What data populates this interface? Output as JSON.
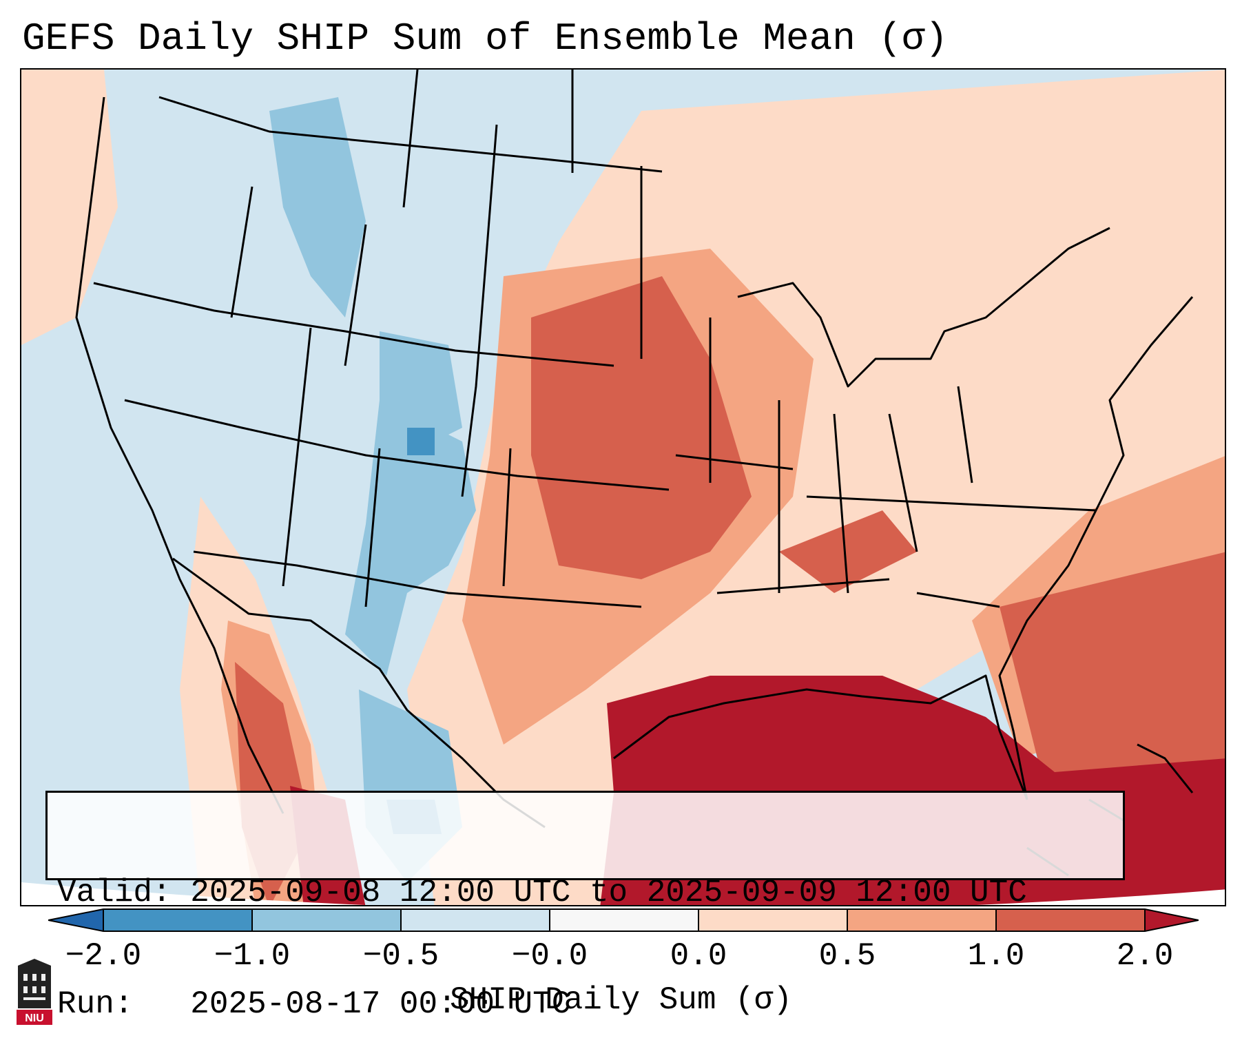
{
  "title": "GEFS Daily SHIP Sum of Ensemble Mean (σ)",
  "info": {
    "valid_label": "Valid:",
    "valid_value": "2025-09-08 12:00 UTC to 2025-09-09 12:00 UTC",
    "run_label": "Run:",
    "run_value": "2025-08-17 00:00 UTC"
  },
  "colorbar": {
    "label": "SHIP Daily Sum (σ)",
    "ticks": [
      "−2.0",
      "−1.0",
      "−0.5",
      "−0.0",
      "0.0",
      "0.5",
      "1.0",
      "2.0"
    ],
    "colors": {
      "under": "#2166ac",
      "n2_n1": "#4393c3",
      "n1_n05": "#92c5de",
      "n05_0": "#d1e5f0",
      "zero": "#f7f7f7",
      "p0_05": "#fddbc7",
      "p05_1": "#f4a582",
      "p1_2": "#d6604d",
      "over": "#b2182b"
    }
  },
  "logo": {
    "text": "NIU",
    "icon": "niu-building-icon"
  }
}
